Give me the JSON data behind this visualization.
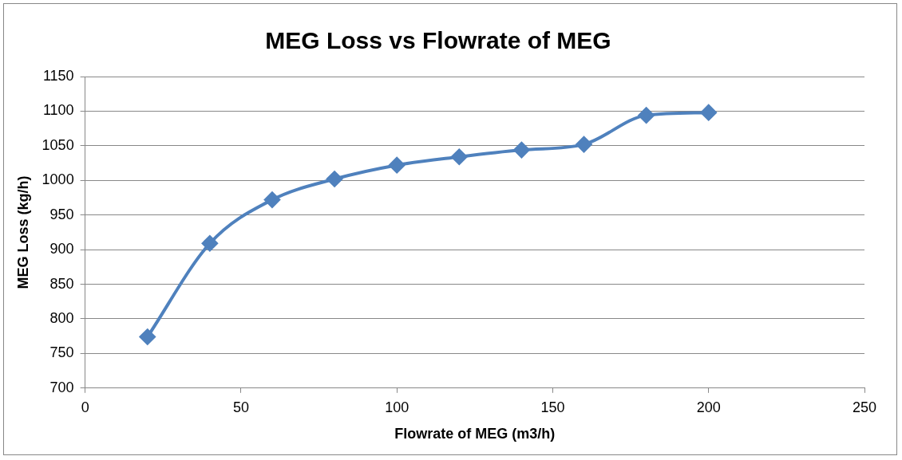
{
  "chart_data": {
    "type": "line",
    "title": "MEG Loss vs Flowrate of MEG",
    "xlabel": "Flowrate of MEG (m3/h)",
    "ylabel": "MEG Loss (kg/h)",
    "x": [
      20,
      40,
      60,
      80,
      100,
      120,
      140,
      160,
      180,
      200
    ],
    "series": [
      {
        "color": "#4f81bd",
        "values": [
          774,
          909,
          972,
          1002,
          1022,
          1034,
          1044,
          1052,
          1094,
          1098
        ]
      }
    ],
    "xlim": [
      0,
      250
    ],
    "xticks": [
      0,
      50,
      100,
      150,
      200,
      250
    ],
    "ylim": [
      700,
      1150
    ],
    "yticks": [
      700,
      750,
      800,
      850,
      900,
      950,
      1000,
      1050,
      1100,
      1150
    ],
    "grid": "y",
    "legend": false,
    "marker": "diamond",
    "line_style": "solid"
  }
}
